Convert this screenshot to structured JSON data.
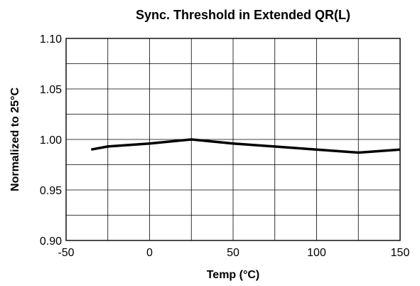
{
  "chart_data": {
    "type": "line",
    "title": "Sync. Threshold in Extended QR(L)",
    "xlabel": "Temp (°C)",
    "ylabel": "Normalized to 25°C",
    "xlim": [
      -50,
      150
    ],
    "ylim": [
      0.9,
      1.1
    ],
    "x_ticks": [
      -50,
      0,
      50,
      100,
      150
    ],
    "x_tick_labels": [
      "-50",
      "0",
      "50",
      "100",
      "150"
    ],
    "y_ticks": [
      0.9,
      0.95,
      1.0,
      1.05,
      1.1
    ],
    "y_tick_labels": [
      "0.90",
      "0.95",
      "1.00",
      "1.05",
      "1.10"
    ],
    "x_gridlines": [
      -50,
      -25,
      0,
      25,
      50,
      75,
      100,
      125,
      150
    ],
    "y_gridlines": [
      0.9,
      0.925,
      0.95,
      0.975,
      1.0,
      1.025,
      1.05,
      1.075,
      1.1
    ],
    "grid": true,
    "series": [
      {
        "x": [
          -35,
          -25,
          0,
          25,
          50,
          100,
          125,
          150
        ],
        "y": [
          0.99,
          0.993,
          0.996,
          1.0,
          0.996,
          0.99,
          0.987,
          0.99
        ]
      }
    ],
    "colors": {
      "line": "#000000",
      "grid": "#000000",
      "background": "#ffffff"
    }
  }
}
